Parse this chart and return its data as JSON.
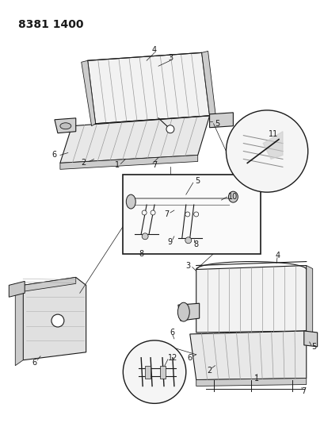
{
  "title_text": "8381 1400",
  "bg_color": "#ffffff",
  "line_color": "#1a1a1a",
  "stripe_color": "#999999",
  "fill_seat": "#e8e8e8",
  "fill_back": "#f0f0f0",
  "fill_arm": "#d0d0d0",
  "fill_side": "#d8d8d8",
  "label_fontsize": 7,
  "title_fontsize": 10
}
